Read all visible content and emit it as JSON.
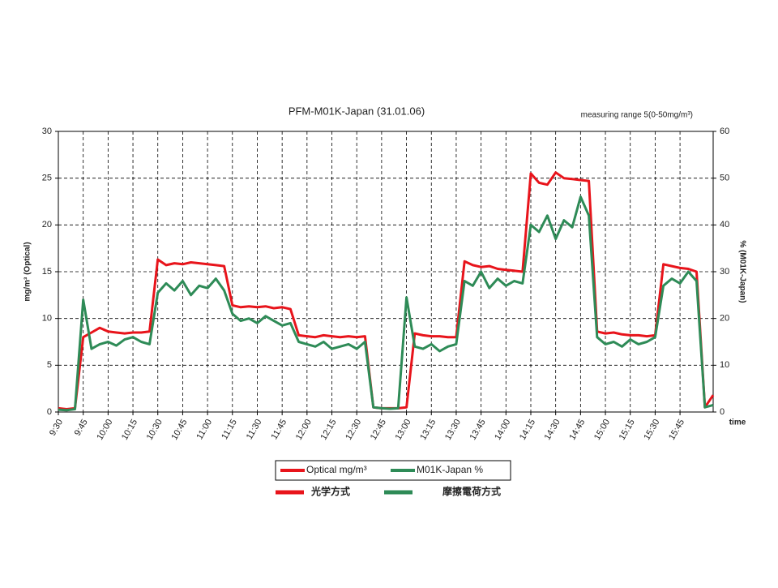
{
  "chart_data": {
    "type": "line",
    "title": "PFM-M01K-Japan (31.01.06)",
    "subtitle": "measuring range 5(0-50mg/m³)",
    "x_label": "time",
    "y_label": "mg/m³ (Optical)",
    "y2_label": "% (M01K-Japan)",
    "categories": [
      "9:30",
      null,
      null,
      "9:45",
      null,
      null,
      "10:00",
      null,
      null,
      "10:15",
      null,
      null,
      "10:30",
      null,
      null,
      "10:45",
      null,
      null,
      "11:00",
      null,
      null,
      "11:15",
      null,
      null,
      "11:30",
      null,
      null,
      "11:45",
      null,
      null,
      "12:00",
      null,
      null,
      "12:15",
      null,
      null,
      "12:30",
      null,
      null,
      "12:45",
      null,
      null,
      "13:00",
      null,
      null,
      "13:15",
      null,
      null,
      "13:30",
      null,
      null,
      "13:45",
      null,
      null,
      "14:00",
      null,
      null,
      "14:15",
      null,
      null,
      "14:30",
      null,
      null,
      "14:45",
      null,
      null,
      "15:00",
      null,
      null,
      "15:15",
      null,
      null,
      "15:30",
      null,
      null,
      "15:45",
      null,
      null,
      null,
      null
    ],
    "series": [
      {
        "name": "Optical mg/m³",
        "color": "#e8141b",
        "note": "光学方式",
        "values": [
          0.4,
          0.3,
          0.4,
          8.0,
          8.5,
          9.0,
          8.6,
          8.5,
          8.4,
          8.5,
          8.5,
          8.6,
          16.3,
          15.7,
          15.9,
          15.8,
          16.0,
          15.9,
          15.8,
          15.7,
          15.6,
          11.4,
          11.2,
          11.3,
          11.2,
          11.3,
          11.1,
          11.2,
          11.0,
          8.2,
          8.1,
          8.0,
          8.2,
          8.1,
          8.0,
          8.1,
          8.0,
          8.1,
          0.5,
          0.4,
          0.4,
          0.4,
          0.5,
          8.4,
          8.2,
          8.1,
          8.1,
          8.0,
          8.0,
          16.1,
          15.7,
          15.5,
          15.6,
          15.3,
          15.2,
          15.1,
          15.0,
          25.5,
          24.5,
          24.3,
          25.6,
          25.0,
          24.9,
          24.8,
          24.7,
          8.6,
          8.4,
          8.5,
          8.3,
          8.2,
          8.2,
          8.1,
          8.2,
          15.8,
          15.6,
          15.4,
          15.3,
          15.0,
          0.5,
          1.8
        ]
      },
      {
        "name": "M01K-Japan %",
        "color": "#2e8b57",
        "axis": "y2",
        "note": "摩擦電荷方式",
        "values": [
          0.5,
          0.4,
          0.6,
          24.0,
          13.5,
          14.5,
          15.0,
          14.2,
          15.5,
          16.0,
          15.0,
          14.5,
          25.5,
          27.5,
          26.0,
          28.0,
          25.0,
          27.0,
          26.5,
          28.5,
          26.0,
          21.0,
          19.5,
          20.0,
          19.0,
          20.5,
          19.5,
          18.5,
          19.0,
          15.0,
          14.5,
          14.0,
          15.0,
          13.5,
          14.0,
          14.5,
          13.5,
          15.0,
          1.0,
          0.8,
          0.7,
          0.8,
          24.5,
          14.0,
          13.5,
          14.5,
          13.0,
          14.0,
          14.5,
          28.0,
          27.0,
          30.0,
          26.5,
          28.5,
          27.0,
          28.0,
          27.5,
          40.0,
          38.5,
          42.0,
          37.0,
          41.0,
          39.5,
          46.0,
          42.0,
          16.0,
          14.5,
          15.0,
          14.0,
          15.5,
          14.5,
          15.0,
          16.0,
          27.0,
          28.5,
          27.5,
          30.0,
          28.0,
          1.0,
          1.5
        ]
      }
    ],
    "ylim": [
      0,
      30
    ],
    "yticks": [
      0,
      5,
      10,
      15,
      20,
      25,
      30
    ],
    "y2lim": [
      0,
      60
    ],
    "y2ticks": [
      0,
      10,
      20,
      30,
      40,
      50,
      60
    ],
    "grid": true,
    "legend": "bottom"
  }
}
